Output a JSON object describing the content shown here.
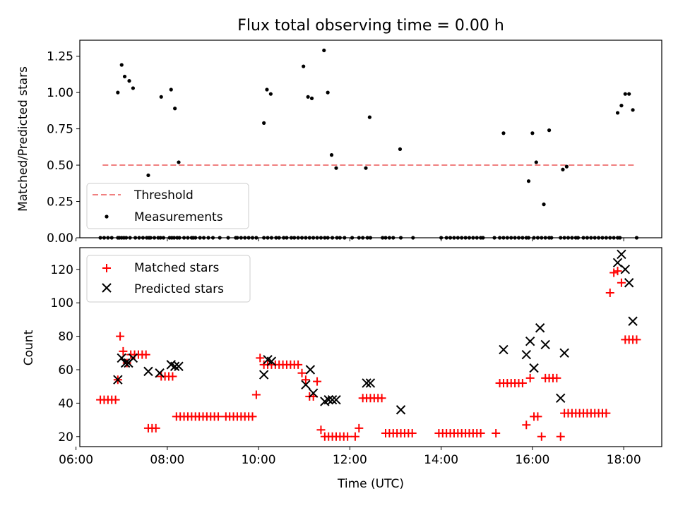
{
  "chart_data": [
    {
      "type": "scatter",
      "title": "Flux total observing time = 0.00 h",
      "xlabel": "",
      "ylabel": "Matched/Predicted stars",
      "xlim": [
        "06:05",
        "18:50"
      ],
      "ylim": [
        0,
        1.36
      ],
      "x_ticks": [
        "06:00",
        "08:00",
        "10:00",
        "12:00",
        "14:00",
        "16:00",
        "18:00"
      ],
      "y_ticks": [
        "0.00",
        "0.25",
        "0.50",
        "0.75",
        "1.00",
        "1.25"
      ],
      "legend": {
        "placement": "lower-left",
        "entries": [
          "Threshold",
          "Measurements"
        ]
      },
      "series": [
        {
          "name": "Threshold",
          "style": "dashed-line",
          "color": "#f08080",
          "x": [
            "06:35",
            "18:15"
          ],
          "y": [
            0.5,
            0.5
          ]
        },
        {
          "name": "Measurements",
          "style": "dot",
          "color": "#000000",
          "x": [
            "06:32",
            "06:37",
            "06:42",
            "06:47",
            "06:55",
            "06:57",
            "07:00",
            "07:03",
            "07:06",
            "07:11",
            "07:18",
            "07:23",
            "07:28",
            "07:33",
            "07:36",
            "07:38",
            "07:43",
            "07:48",
            "07:51",
            "07:55",
            "08:03",
            "08:06",
            "08:09",
            "08:13",
            "08:16",
            "08:22",
            "08:27",
            "08:32",
            "08:34",
            "08:37",
            "08:43",
            "08:48",
            "08:54",
            "09:00",
            "09:09",
            "09:20",
            "09:30",
            "09:32",
            "09:37",
            "09:42",
            "09:47",
            "09:52",
            "09:57",
            "10:07",
            "10:12",
            "10:17",
            "10:23",
            "10:27",
            "10:33",
            "10:37",
            "10:43",
            "10:47",
            "10:52",
            "10:57",
            "11:02",
            "11:07",
            "11:12",
            "11:17",
            "11:22",
            "11:27",
            "11:31",
            "11:37",
            "11:43",
            "11:47",
            "11:53",
            "12:03",
            "12:12",
            "12:17",
            "12:23",
            "12:27",
            "12:43",
            "12:47",
            "12:52",
            "12:57",
            "13:07",
            "13:23",
            "14:00",
            "14:07",
            "14:12",
            "14:17",
            "14:22",
            "14:27",
            "14:32",
            "14:37",
            "14:42",
            "14:47",
            "14:52",
            "14:55",
            "15:10",
            "15:17",
            "15:22",
            "15:27",
            "15:32",
            "15:37",
            "15:42",
            "15:47",
            "15:52",
            "15:55",
            "16:02",
            "16:07",
            "16:12",
            "16:17",
            "16:22",
            "16:25",
            "16:37",
            "16:42",
            "16:47",
            "16:52",
            "16:57",
            "17:00",
            "17:07",
            "17:12",
            "17:17",
            "17:22",
            "17:27",
            "17:32",
            "17:37",
            "17:42",
            "17:47",
            "17:52",
            "17:55",
            "18:17"
          ],
          "y": [
            0,
            0,
            0,
            0,
            0,
            0,
            0,
            0,
            0,
            0,
            0,
            0,
            0,
            0,
            0,
            0,
            0,
            0,
            0,
            0,
            0,
            0,
            0,
            0,
            0,
            0,
            0,
            0,
            0,
            0,
            0,
            0,
            0,
            0,
            0,
            0,
            0,
            0,
            0,
            0,
            0,
            0,
            0,
            0,
            0,
            0,
            0,
            0,
            0,
            0,
            0,
            0,
            0,
            0,
            0,
            0,
            0,
            0,
            0,
            0,
            0,
            0,
            0,
            0,
            0,
            0,
            0,
            0,
            0,
            0,
            0,
            0,
            0,
            0,
            0,
            0,
            0,
            0,
            0,
            0,
            0,
            0,
            0,
            0,
            0,
            0,
            0,
            0,
            0,
            0,
            0,
            0,
            0,
            0,
            0,
            0,
            0,
            0,
            0,
            0,
            0,
            0,
            0,
            0,
            0,
            0,
            0,
            0,
            0,
            0,
            0,
            0,
            0,
            0,
            0,
            0,
            0,
            0,
            0,
            0,
            0,
            0
          ]
        },
        {
          "name": "Measurements-nonzero",
          "style": "dot",
          "color": "#000000",
          "x": [
            "06:55",
            "07:00",
            "07:04",
            "07:10",
            "07:15",
            "07:35",
            "07:52",
            "08:05",
            "08:10",
            "08:15",
            "10:07",
            "10:11",
            "10:16",
            "10:59",
            "11:05",
            "11:10",
            "11:26",
            "11:31",
            "11:36",
            "11:42",
            "12:21",
            "12:26",
            "13:06",
            "15:22",
            "15:55",
            "16:00",
            "16:05",
            "16:15",
            "16:22",
            "16:40",
            "16:45",
            "17:52",
            "17:57",
            "18:02",
            "18:07",
            "18:12"
          ],
          "y": [
            1.0,
            1.19,
            1.11,
            1.08,
            1.03,
            0.43,
            0.97,
            1.02,
            0.89,
            0.52,
            0.79,
            1.02,
            0.99,
            1.18,
            0.97,
            0.96,
            1.29,
            1.0,
            0.57,
            0.48,
            0.48,
            0.83,
            0.61,
            0.72,
            0.39,
            0.72,
            0.52,
            0.23,
            0.74,
            0.47,
            0.49,
            0.86,
            0.91,
            0.99,
            0.99,
            0.88
          ]
        }
      ]
    },
    {
      "type": "scatter",
      "title": "",
      "xlabel": "Time (UTC)",
      "ylabel": "Count",
      "xlim": [
        "06:05",
        "18:50"
      ],
      "ylim": [
        14,
        133
      ],
      "x_ticks": [
        "06:00",
        "08:00",
        "10:00",
        "12:00",
        "14:00",
        "16:00",
        "18:00"
      ],
      "y_ticks": [
        "20",
        "40",
        "60",
        "80",
        "100",
        "120"
      ],
      "legend": {
        "placement": "upper-left",
        "entries": [
          "Matched stars",
          "Predicted stars"
        ]
      },
      "series": [
        {
          "name": "Matched stars",
          "style": "plus",
          "color": "#ff0000",
          "x": [
            "06:32",
            "06:37",
            "06:42",
            "06:47",
            "06:52",
            "06:55",
            "06:58",
            "07:02",
            "07:07",
            "07:12",
            "07:17",
            "07:22",
            "07:27",
            "07:32",
            "07:35",
            "07:40",
            "07:45",
            "07:52",
            "07:57",
            "08:02",
            "08:07",
            "08:12",
            "08:17",
            "08:22",
            "08:27",
            "08:32",
            "08:37",
            "08:42",
            "08:47",
            "08:52",
            "08:57",
            "09:02",
            "09:07",
            "09:17",
            "09:22",
            "09:27",
            "09:32",
            "09:37",
            "09:42",
            "09:47",
            "09:52",
            "09:57",
            "10:02",
            "10:07",
            "10:12",
            "10:17",
            "10:22",
            "10:27",
            "10:32",
            "10:37",
            "10:42",
            "10:47",
            "10:52",
            "10:57",
            "11:02",
            "11:07",
            "11:12",
            "11:17",
            "11:22",
            "11:27",
            "11:32",
            "11:37",
            "11:42",
            "11:47",
            "11:52",
            "11:57",
            "12:07",
            "12:12",
            "12:17",
            "12:22",
            "12:27",
            "12:32",
            "12:37",
            "12:42",
            "12:47",
            "12:52",
            "12:57",
            "13:02",
            "13:07",
            "13:12",
            "13:17",
            "13:22",
            "13:57",
            "14:02",
            "14:07",
            "14:12",
            "14:17",
            "14:22",
            "14:27",
            "14:32",
            "14:37",
            "14:42",
            "14:47",
            "14:52",
            "15:12",
            "15:17",
            "15:22",
            "15:27",
            "15:32",
            "15:37",
            "15:42",
            "15:47",
            "15:52",
            "15:57",
            "16:02",
            "16:07",
            "16:12",
            "16:17",
            "16:22",
            "16:27",
            "16:32",
            "16:37",
            "16:42",
            "16:47",
            "16:52",
            "16:57",
            "17:02",
            "17:07",
            "17:12",
            "17:17",
            "17:22",
            "17:27",
            "17:32",
            "17:37",
            "17:42",
            "17:47",
            "17:52",
            "17:57",
            "18:02",
            "18:07",
            "18:12",
            "18:17"
          ],
          "y": [
            42,
            42,
            42,
            42,
            42,
            54,
            80,
            71,
            64,
            69,
            69,
            69,
            69,
            69,
            25,
            25,
            25,
            56,
            56,
            56,
            56,
            32,
            32,
            32,
            32,
            32,
            32,
            32,
            32,
            32,
            32,
            32,
            32,
            32,
            32,
            32,
            32,
            32,
            32,
            32,
            32,
            45,
            67,
            63,
            63,
            63,
            63,
            63,
            63,
            63,
            63,
            63,
            63,
            58,
            54,
            44,
            44,
            53,
            24,
            20,
            20,
            20,
            20,
            20,
            20,
            20,
            20,
            25,
            43,
            43,
            43,
            43,
            43,
            43,
            22,
            22,
            22,
            22,
            22,
            22,
            22,
            22,
            22,
            22,
            22,
            22,
            22,
            22,
            22,
            22,
            22,
            22,
            22,
            22,
            22,
            52,
            52,
            52,
            52,
            52,
            52,
            52,
            27,
            55,
            32,
            32,
            20,
            55,
            55,
            55,
            55,
            20,
            34,
            34,
            34,
            34,
            34,
            34,
            34,
            34,
            34,
            34,
            34,
            34,
            106,
            118,
            119,
            112,
            78,
            78,
            78,
            78
          ]
        },
        {
          "name": "Predicted stars",
          "style": "x",
          "color": "#000000",
          "x": [
            "06:55",
            "07:00",
            "07:05",
            "07:09",
            "07:15",
            "07:35",
            "07:50",
            "08:05",
            "08:10",
            "08:15",
            "10:07",
            "10:12",
            "10:17",
            "11:02",
            "11:08",
            "11:12",
            "11:27",
            "11:32",
            "11:37",
            "11:42",
            "12:22",
            "12:27",
            "13:07",
            "15:22",
            "15:52",
            "15:57",
            "16:02",
            "16:10",
            "16:17",
            "16:37",
            "16:42",
            "17:52",
            "17:57",
            "18:02",
            "18:07",
            "18:12"
          ],
          "y": [
            54,
            67,
            64,
            64,
            67,
            59,
            58,
            63,
            62,
            62,
            57,
            66,
            65,
            51,
            60,
            46,
            41,
            42,
            42,
            42,
            52,
            52,
            36,
            72,
            69,
            77,
            61,
            85,
            75,
            43,
            70,
            124,
            129,
            120,
            112,
            89
          ]
        }
      ]
    }
  ]
}
